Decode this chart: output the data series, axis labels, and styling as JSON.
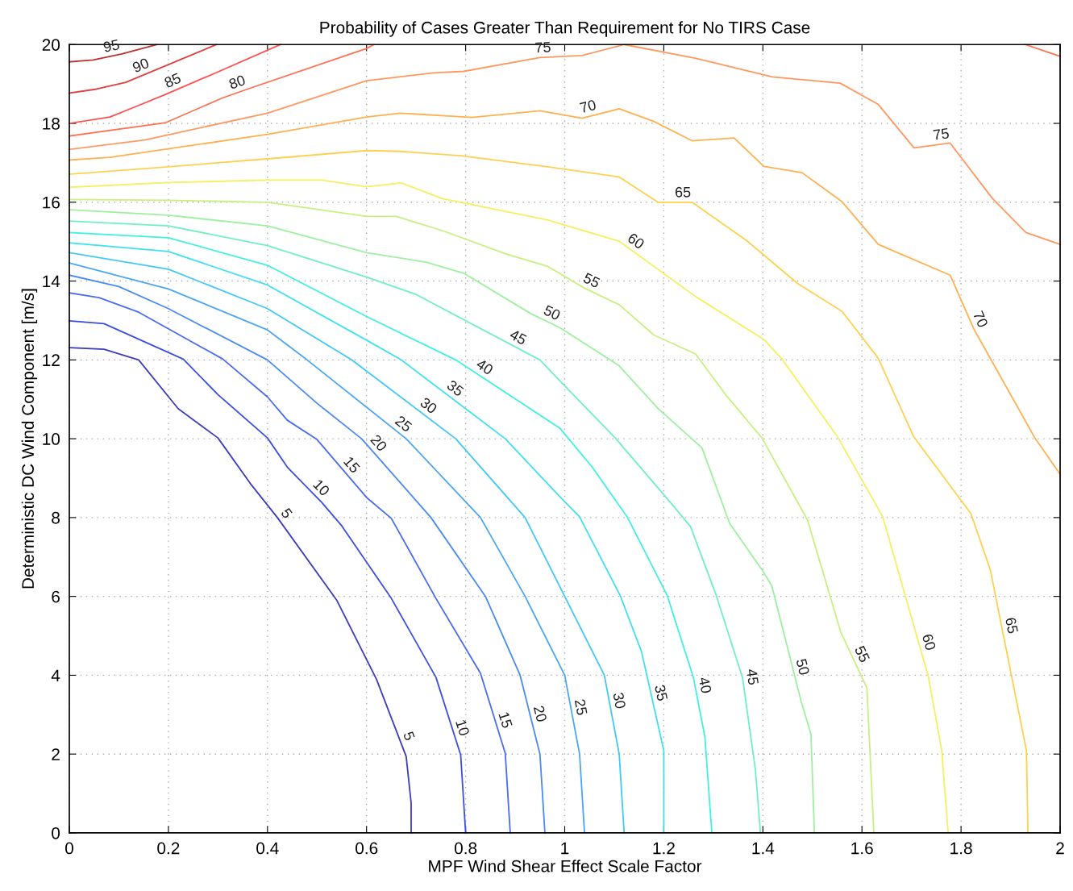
{
  "chart_data": {
    "type": "line",
    "title": "Probability of Cases Greater Than Requirement for No TIRS Case",
    "xlabel": "MPF Wind Shear Effect Scale Factor",
    "ylabel": "Deterministic DC Wind Component [m/s]",
    "xlim": [
      0,
      2
    ],
    "ylim": [
      0,
      20
    ],
    "xticks": [
      0,
      0.2,
      0.4,
      0.6,
      0.8,
      1,
      1.2,
      1.4,
      1.6,
      1.8,
      2
    ],
    "yticks": [
      0,
      2,
      4,
      6,
      8,
      10,
      12,
      14,
      16,
      18,
      20
    ],
    "grid": true,
    "marker": "none",
    "line_style": "solid",
    "series": [
      {
        "name": "5",
        "color": "#3c3cbf",
        "x": [
          0,
          0.07,
          0.14,
          0.22,
          0.3,
          0.365,
          0.42,
          0.54,
          0.62,
          0.68,
          0.69,
          0.69
        ],
        "values": [
          12.31,
          12.27,
          12.0,
          10.76,
          10.02,
          8.87,
          8.0,
          5.9,
          3.9,
          1.94,
          0.76,
          0
        ]
      },
      {
        "name": "10",
        "color": "#3a4fe0",
        "x": [
          0,
          0.07,
          0.23,
          0.3,
          0.4,
          0.44,
          0.51,
          0.55,
          0.65,
          0.74,
          0.79,
          0.8
        ],
        "values": [
          12.99,
          12.92,
          12.02,
          11.12,
          10.02,
          9.28,
          8.38,
          7.79,
          5.95,
          3.95,
          1.98,
          0
        ]
      },
      {
        "name": "15",
        "color": "#4a6cf0",
        "x": [
          0,
          0.06,
          0.14,
          0.31,
          0.4,
          0.44,
          0.5,
          0.6,
          0.65,
          0.74,
          0.83,
          0.88,
          0.89
        ],
        "values": [
          13.7,
          13.58,
          13.21,
          12.02,
          11.06,
          10.47,
          9.98,
          8.51,
          7.98,
          5.95,
          4.05,
          2.02,
          0
        ]
      },
      {
        "name": "20",
        "color": "#4a8af5",
        "x": [
          0,
          0.1,
          0.2,
          0.4,
          0.5,
          0.59,
          0.73,
          0.84,
          0.91,
          0.95,
          0.96
        ],
        "values": [
          14.15,
          13.86,
          13.3,
          12,
          10.9,
          10,
          8,
          6,
          4,
          2,
          0
        ]
      },
      {
        "name": "25",
        "color": "#4aa6f5",
        "x": [
          0,
          0.2,
          0.4,
          0.48,
          0.68,
          0.83,
          0.92,
          1.0,
          1.03,
          1.04
        ],
        "values": [
          14.46,
          13.8,
          12.76,
          12,
          10,
          8,
          6,
          4,
          2,
          0
        ]
      },
      {
        "name": "30",
        "color": "#40c8f8",
        "x": [
          0,
          0.2,
          0.4,
          0.57,
          0.78,
          0.92,
          1.0,
          1.08,
          1.11,
          1.12
        ],
        "values": [
          14.72,
          14.3,
          13.3,
          12,
          10,
          8,
          6,
          4,
          2,
          0
        ]
      },
      {
        "name": "35",
        "color": "#40e0f0",
        "x": [
          0,
          0.2,
          0.4,
          0.6,
          0.67,
          0.88,
          0.99,
          1.03,
          1.112,
          1.155,
          1.2,
          1.2
        ],
        "values": [
          14.97,
          14.75,
          13.9,
          12.5,
          12,
          10,
          8.53,
          8.02,
          6.02,
          4.6,
          2.09,
          0
        ]
      },
      {
        "name": "40",
        "color": "#40f0e0",
        "x": [
          0,
          0.2,
          0.4,
          0.6,
          0.78,
          0.99,
          1.056,
          1.126,
          1.207,
          1.26,
          1.283,
          1.297
        ],
        "values": [
          15.23,
          15.1,
          14.4,
          13.1,
          12,
          10.27,
          9.27,
          8.02,
          6.02,
          3.93,
          2.43,
          0
        ]
      },
      {
        "name": "45",
        "color": "#70f0c0",
        "x": [
          0,
          0.2,
          0.4,
          0.6,
          0.7,
          0.95,
          0.99,
          1.102,
          1.221,
          1.254,
          1.306,
          1.359,
          1.385,
          1.395
        ],
        "values": [
          15.52,
          15.4,
          14.9,
          14.1,
          13.66,
          12,
          11.47,
          10.02,
          8.27,
          7.77,
          6.02,
          3.93,
          1.6,
          0
        ]
      },
      {
        "name": "50",
        "color": "#9ef0a0",
        "x": [
          0,
          0.2,
          0.4,
          0.6,
          0.72,
          0.796,
          0.932,
          0.99,
          1.109,
          1.188,
          1.277,
          1.333,
          1.398,
          1.418,
          1.477,
          1.497,
          1.504
        ],
        "values": [
          15.81,
          15.67,
          15.4,
          14.72,
          14.48,
          14.2,
          13.17,
          12.82,
          11.86,
          10.77,
          9.77,
          7.85,
          6.68,
          6.27,
          3.35,
          2.51,
          0
        ]
      },
      {
        "name": "55",
        "color": "#c8f080",
        "x": [
          0,
          0.2,
          0.4,
          0.6,
          0.66,
          0.753,
          0.881,
          0.966,
          1.04,
          1.11,
          1.18,
          1.264,
          1.326,
          1.398,
          1.49,
          1.557,
          1.61,
          1.624
        ],
        "values": [
          16.07,
          16.05,
          16.0,
          15.64,
          15.64,
          15.28,
          14.69,
          14.37,
          13.82,
          13.4,
          12.63,
          12.15,
          11.1,
          10.02,
          7.94,
          5.1,
          3.68,
          0
        ]
      },
      {
        "name": "60",
        "color": "#f4f060",
        "x": [
          0,
          0.2,
          0.4,
          0.51,
          0.6,
          0.67,
          0.753,
          0.966,
          1.11,
          1.265,
          1.402,
          1.438,
          1.55,
          1.642,
          1.678,
          1.734,
          1.761,
          1.774
        ],
        "values": [
          16.38,
          16.5,
          16.56,
          16.56,
          16.39,
          16.49,
          16.09,
          15.55,
          15.01,
          13.6,
          12.52,
          12.03,
          10.06,
          8.02,
          6.43,
          3.97,
          2.09,
          0
        ]
      },
      {
        "name": "65",
        "color": "#ffd050",
        "x": [
          0,
          0.2,
          0.4,
          0.6,
          0.668,
          0.79,
          0.966,
          1.11,
          1.188,
          1.257,
          1.368,
          1.471,
          1.56,
          1.633,
          1.704,
          1.82,
          1.859,
          1.932,
          1.935
        ],
        "values": [
          16.71,
          16.9,
          17.1,
          17.31,
          17.29,
          17.18,
          16.9,
          16.64,
          16.0,
          16.0,
          15.02,
          13.93,
          13.23,
          12.04,
          10.06,
          8.1,
          6.68,
          2.09,
          0
        ]
      },
      {
        "name": "70",
        "color": "#ffb050",
        "x": [
          0,
          0.082,
          0.4,
          0.6,
          0.668,
          0.813,
          0.95,
          1.035,
          1.11,
          1.18,
          1.257,
          1.342,
          1.402,
          1.479,
          1.56,
          1.633,
          1.778,
          1.826,
          1.95,
          2.0
        ],
        "values": [
          17.07,
          17.14,
          17.72,
          18.16,
          18.26,
          18.15,
          18.32,
          18.13,
          18.37,
          18.05,
          17.56,
          17.63,
          16.91,
          16.75,
          16.01,
          14.93,
          14.15,
          12.78,
          10.0,
          9.1
        ]
      },
      {
        "name": "75",
        "color": "#ff9860",
        "x": [
          0,
          0.152,
          0.4,
          0.6,
          0.735,
          0.796,
          0.95,
          1.035,
          1.12,
          1.265,
          1.419,
          1.556,
          1.633,
          1.705,
          1.778,
          1.863,
          1.931,
          2.0
        ],
        "values": [
          17.34,
          17.58,
          18.26,
          19.08,
          19.28,
          19.32,
          19.67,
          19.72,
          20,
          19.65,
          19.18,
          19.02,
          18.48,
          17.38,
          17.5,
          16.1,
          15.23,
          14.93
        ]
      },
      {
        "name": "80",
        "color": "#ff7050",
        "x": [
          0,
          0.195,
          0.308,
          0.362,
          0.6,
          0.615,
          1.3,
          1.93,
          2.0
        ],
        "values": [
          17.68,
          18.02,
          18.64,
          18.88,
          19.9,
          20,
          null,
          20,
          19.7
        ]
      },
      {
        "name": "85",
        "color": "#ff5050",
        "x": [
          0,
          0.082,
          0.135,
          0.195,
          0.297,
          0.426
        ],
        "values": [
          18.0,
          18.16,
          18.43,
          18.74,
          19.29,
          20
        ]
      },
      {
        "name": "90",
        "color": "#e04040",
        "x": [
          0,
          0.055,
          0.114,
          0.297
        ],
        "values": [
          18.77,
          18.87,
          19.04,
          20
        ]
      },
      {
        "name": "95",
        "color": "#c03030",
        "x": [
          0,
          0.048,
          0.106,
          0.176
        ],
        "values": [
          19.56,
          19.61,
          19.76,
          20
        ]
      }
    ]
  }
}
